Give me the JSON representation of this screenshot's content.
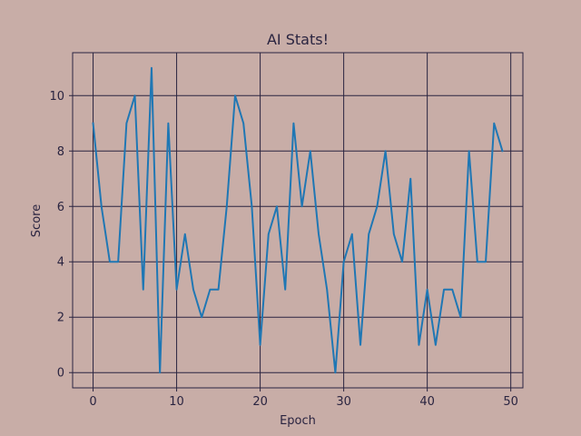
{
  "colors": {
    "background": "#c8ada7",
    "plot_background": "#c8ada7",
    "line": "#1f77b4",
    "grid": "#2a2440",
    "text": "#2a2440"
  },
  "chart_data": {
    "type": "line",
    "title": "AI Stats!",
    "xlabel": "Epoch",
    "ylabel": "Score",
    "xlim": [
      -2.45,
      51.45
    ],
    "ylim": [
      -0.55,
      11.55
    ],
    "xticks": [
      0,
      10,
      20,
      30,
      40,
      50
    ],
    "yticks": [
      0,
      2,
      4,
      6,
      8,
      10
    ],
    "xtick_labels": [
      "0",
      "10",
      "20",
      "30",
      "40",
      "50"
    ],
    "ytick_labels": [
      "0",
      "2",
      "4",
      "6",
      "8",
      "10"
    ],
    "grid": true,
    "x": [
      0,
      1,
      2,
      3,
      4,
      5,
      6,
      7,
      8,
      9,
      10,
      11,
      12,
      13,
      14,
      15,
      16,
      17,
      18,
      19,
      20,
      21,
      22,
      23,
      24,
      25,
      26,
      27,
      28,
      29,
      30,
      31,
      32,
      33,
      34,
      35,
      36,
      37,
      38,
      39,
      40,
      41,
      42,
      43,
      44,
      45,
      46,
      47,
      48,
      49
    ],
    "series": [
      {
        "values": [
          9,
          6,
          4,
          4,
          9,
          10,
          3,
          11,
          0,
          9,
          3,
          5,
          3,
          2,
          3,
          3,
          6,
          10,
          9,
          6,
          1,
          5,
          6,
          3,
          9,
          6,
          8,
          5,
          3,
          0,
          4,
          5,
          1,
          5,
          6,
          8,
          5,
          4,
          7,
          1,
          3,
          1,
          3,
          3,
          2,
          8,
          4,
          4,
          9,
          8
        ]
      }
    ]
  }
}
